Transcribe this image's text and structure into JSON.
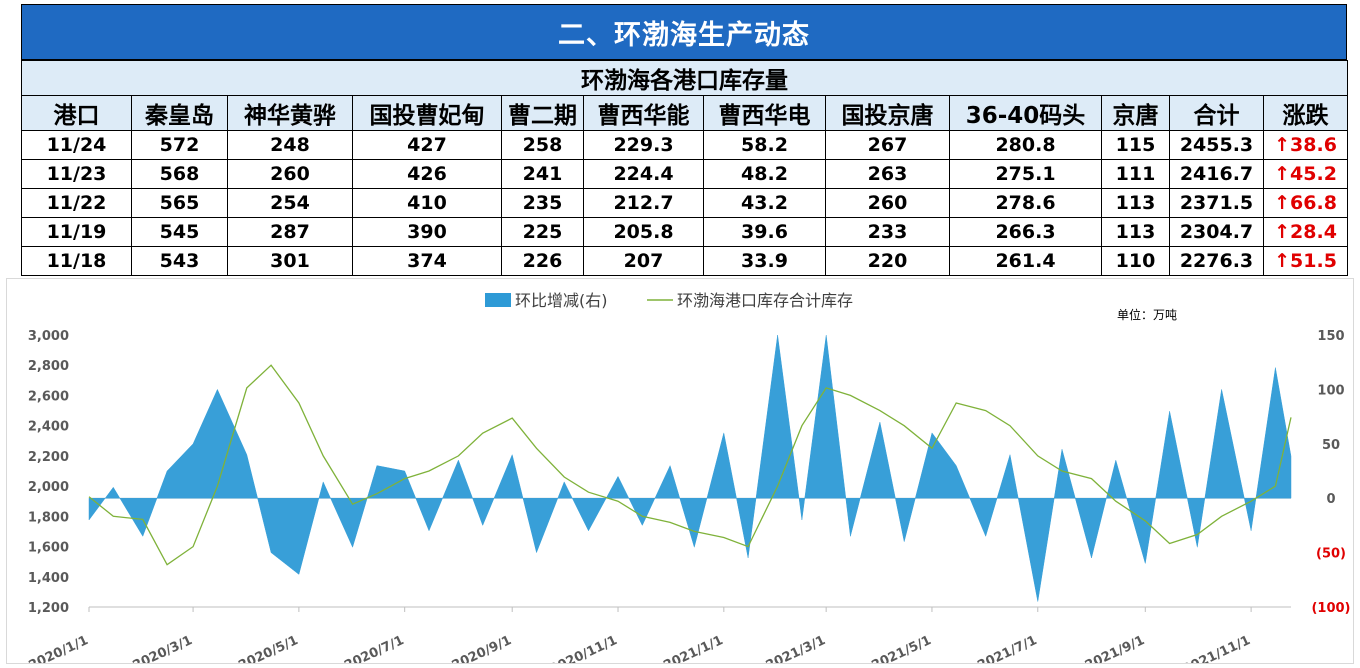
{
  "section_title": "二、环渤海生产动态",
  "table": {
    "title": "环渤海各港口库存量",
    "headers": [
      "港口",
      "秦皇岛",
      "神华黄骅",
      "国投曹妃甸",
      "曹二期",
      "曹西华能",
      "曹西华电",
      "国投京唐",
      "36-40码头",
      "京唐",
      "合计",
      "涨跌"
    ],
    "rows": [
      [
        "11/24",
        "572",
        "248",
        "427",
        "258",
        "229.3",
        "58.2",
        "267",
        "280.8",
        "115",
        "2455.3",
        "↑38.6"
      ],
      [
        "11/23",
        "568",
        "260",
        "426",
        "241",
        "224.4",
        "48.2",
        "263",
        "275.1",
        "111",
        "2416.7",
        "↑45.2"
      ],
      [
        "11/22",
        "565",
        "254",
        "410",
        "235",
        "212.7",
        "43.2",
        "260",
        "278.6",
        "113",
        "2371.5",
        "↑66.8"
      ],
      [
        "11/19",
        "545",
        "287",
        "390",
        "225",
        "205.8",
        "39.6",
        "233",
        "266.3",
        "113",
        "2304.7",
        "↑28.4"
      ],
      [
        "11/18",
        "543",
        "301",
        "374",
        "226",
        "207",
        "33.9",
        "220",
        "261.4",
        "110",
        "2276.3",
        "↑51.5"
      ]
    ]
  },
  "chart_data": {
    "type": "area+line",
    "unit_note": "单位：万吨",
    "legend": [
      "环比增减(右)",
      "环渤海港口库存合计库存"
    ],
    "legend_position": "top",
    "x_tick_labels": [
      "2020/1/1",
      "2020/3/1",
      "2020/5/1",
      "2020/7/1",
      "2020/9/1",
      "2020/11/1",
      "2021/1/1",
      "2021/3/1",
      "2021/5/1",
      "2021/7/1",
      "2021/9/1",
      "2021/11/1"
    ],
    "left_axis": {
      "ylim": [
        1200,
        3000
      ],
      "ticks": [
        "3,000",
        "2,800",
        "2,600",
        "2,400",
        "2,200",
        "2,000",
        "1,800",
        "1,600",
        "1,400",
        "1,200"
      ]
    },
    "right_axis": {
      "ylim": [
        -100,
        150
      ],
      "ticks": [
        "150",
        "100",
        "50",
        "0",
        "(50)",
        "(100)"
      ]
    },
    "grid": false,
    "series": [
      {
        "name": "环渤海港口库存合计库存",
        "axis": "left",
        "color": "#7fb23a",
        "x": [
          "2020/1/1",
          "2020/1/15",
          "2020/2/1",
          "2020/2/15",
          "2020/3/1",
          "2020/3/15",
          "2020/4/1",
          "2020/4/15",
          "2020/5/1",
          "2020/5/15",
          "2020/6/1",
          "2020/6/15",
          "2020/7/1",
          "2020/7/15",
          "2020/8/1",
          "2020/8/15",
          "2020/9/1",
          "2020/9/15",
          "2020/10/1",
          "2020/10/15",
          "2020/11/1",
          "2020/11/15",
          "2020/12/1",
          "2020/12/15",
          "2021/1/1",
          "2021/1/15",
          "2021/2/1",
          "2021/2/15",
          "2021/3/1",
          "2021/3/15",
          "2021/4/1",
          "2021/4/15",
          "2021/5/1",
          "2021/5/15",
          "2021/6/1",
          "2021/6/15",
          "2021/7/1",
          "2021/7/15",
          "2021/8/1",
          "2021/8/15",
          "2021/9/1",
          "2021/9/15",
          "2021/10/1",
          "2021/10/15",
          "2021/11/1",
          "2021/11/15",
          "2021/11/24"
        ],
        "values": [
          1930,
          1800,
          1780,
          1480,
          1600,
          2000,
          2650,
          2800,
          2550,
          2200,
          1880,
          1950,
          2050,
          2100,
          2200,
          2350,
          2450,
          2250,
          2060,
          1960,
          1900,
          1800,
          1760,
          1700,
          1660,
          1600,
          2000,
          2400,
          2650,
          2600,
          2500,
          2400,
          2250,
          2550,
          2500,
          2400,
          2200,
          2100,
          2050,
          1900,
          1770,
          1620,
          1680,
          1800,
          1900,
          2000,
          2455
        ]
      },
      {
        "name": "环比增减(右)",
        "axis": "right",
        "color": "#2e9ad6",
        "x": [
          "2020/1/1",
          "2020/1/15",
          "2020/2/1",
          "2020/2/15",
          "2020/3/1",
          "2020/3/15",
          "2020/4/1",
          "2020/4/15",
          "2020/5/1",
          "2020/5/15",
          "2020/6/1",
          "2020/6/15",
          "2020/7/1",
          "2020/7/15",
          "2020/8/1",
          "2020/8/15",
          "2020/9/1",
          "2020/9/15",
          "2020/10/1",
          "2020/10/15",
          "2020/11/1",
          "2020/11/15",
          "2020/12/1",
          "2020/12/15",
          "2021/1/1",
          "2021/1/15",
          "2021/2/1",
          "2021/2/15",
          "2021/3/1",
          "2021/3/15",
          "2021/4/1",
          "2021/4/15",
          "2021/5/1",
          "2021/5/15",
          "2021/6/1",
          "2021/6/15",
          "2021/7/1",
          "2021/7/15",
          "2021/8/1",
          "2021/8/15",
          "2021/9/1",
          "2021/9/15",
          "2021/10/1",
          "2021/10/15",
          "2021/11/1",
          "2021/11/15",
          "2021/11/24"
        ],
        "values": [
          -20,
          10,
          -35,
          25,
          50,
          100,
          40,
          -50,
          -70,
          15,
          -45,
          30,
          25,
          -30,
          35,
          -25,
          40,
          -50,
          15,
          -30,
          20,
          -25,
          30,
          -45,
          60,
          -55,
          150,
          -20,
          150,
          -35,
          70,
          -40,
          60,
          30,
          -35,
          40,
          -95,
          45,
          -55,
          35,
          -60,
          80,
          -45,
          100,
          -30,
          120,
          38.6
        ]
      }
    ]
  }
}
